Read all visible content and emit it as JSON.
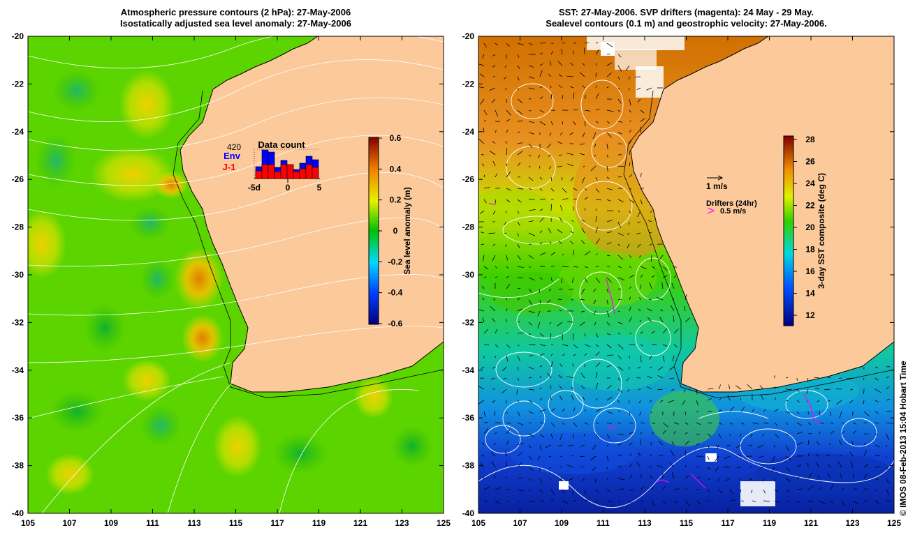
{
  "left_panel": {
    "title_line1": "Atmospheric pressure contours (2 hPa): 27-May-2006",
    "title_line2": "Isostatically adjusted sea level anomaly: 27-May-2006",
    "x_ticks": [
      "105",
      "107",
      "109",
      "111",
      "113",
      "115",
      "117",
      "119",
      "121",
      "123",
      "125"
    ],
    "y_ticks": [
      "-20",
      "-22",
      "-24",
      "-26",
      "-28",
      "-30",
      "-32",
      "-34",
      "-36",
      "-38",
      "-40"
    ],
    "colorbar": {
      "label": "Sea level anomaly (m)",
      "ticks": [
        "0.6",
        "0.4",
        "0.2",
        "0",
        "-0.2",
        "-0.4",
        "-0.6"
      ]
    },
    "inset": {
      "title": "Data count",
      "max_label": "420",
      "env_label": "Env",
      "j1_label": "J-1",
      "x_ticks": [
        "-5d",
        "0",
        "5"
      ],
      "env_color": "#0000ff",
      "j1_color": "#ff0000"
    }
  },
  "right_panel": {
    "title_line1": "SST: 27-May-2006. SVP drifters (magenta): 24 May - 29 May.",
    "title_line2": "Sealevel contours (0.1 m) and geostrophic velocity: 27-May-2006.",
    "x_ticks": [
      "105",
      "107",
      "109",
      "111",
      "113",
      "115",
      "117",
      "119",
      "121",
      "123",
      "125"
    ],
    "y_ticks": [
      "-20",
      "-22",
      "-24",
      "-26",
      "-28",
      "-30",
      "-32",
      "-34",
      "-36",
      "-38",
      "-40"
    ],
    "colorbar": {
      "label": "3-day SST composite (deg C)",
      "ticks": [
        "28",
        "26",
        "24",
        "22",
        "20",
        "18",
        "16",
        "14",
        "12"
      ]
    },
    "legend": {
      "velocity_label": "1 m/s",
      "drifters_title": "Drifters (24hr)",
      "drifter_speed": "0.5 m/s",
      "drifter_color": "#ff00ff"
    }
  },
  "footer": {
    "copyright": "© IMOS 08-Feb-2013 15:04 Hobart Time"
  },
  "colors": {
    "land": "#fcc99b",
    "ocean_anomaly": "#5cd400",
    "contour": "#ffffff",
    "coast": "#000000"
  }
}
